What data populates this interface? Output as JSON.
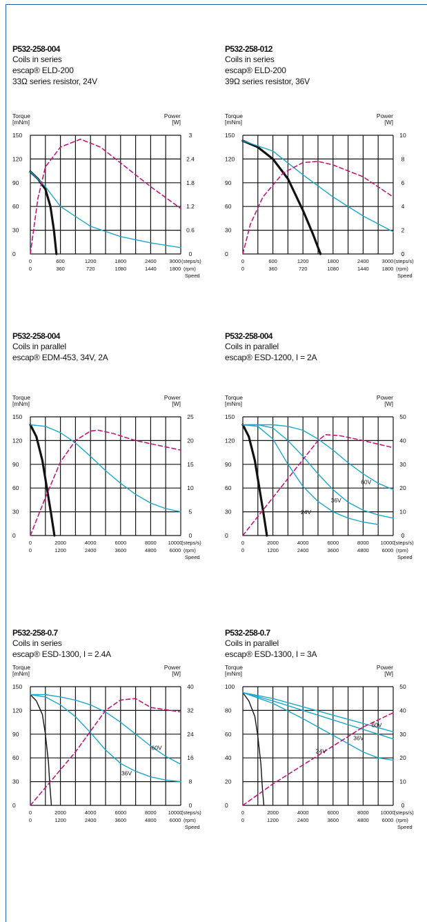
{
  "chart_data": [
    {
      "type": "line",
      "title": "P532-258-004",
      "subtitle_lines": [
        "Coils in series",
        "escap® ELD-200",
        "33Ω series resistor, 24V"
      ],
      "ylabel_left": [
        "Torque",
        "[mNm]"
      ],
      "ylabel_right": [
        "Power",
        "[W]"
      ],
      "xlabel": "Speed",
      "x_unit_top": "(steps/s)",
      "x_unit_bottom": "(rpm)",
      "xlim": [
        0,
        3000
      ],
      "ylim": [
        0,
        150
      ],
      "y2lim": [
        0,
        3
      ],
      "yticks": [
        "0",
        "30",
        "60",
        "90",
        "120",
        "150"
      ],
      "y2ticks": [
        "0",
        "0.6",
        "1.2",
        "1.8",
        "2.4",
        "3"
      ],
      "xticks_top": [
        "0",
        "600",
        "1200",
        "1800",
        "2400",
        "3000"
      ],
      "xticks_bottom": [
        "0",
        "360",
        "720",
        "1080",
        "1440",
        "1800"
      ],
      "grid": true,
      "series": [
        {
          "style": "black",
          "x": [
            0,
            150,
            300,
            400,
            470,
            520
          ],
          "y": [
            104,
            95,
            82,
            60,
            30,
            0
          ]
        },
        {
          "style": "cyan",
          "x": [
            0,
            300,
            600,
            1200,
            1800,
            2400,
            3000
          ],
          "y": [
            104,
            85,
            60,
            35,
            22,
            14,
            8
          ]
        },
        {
          "style": "magenta-dashed",
          "axis": "right",
          "x": [
            0,
            150,
            300,
            600,
            1000,
            1400,
            1800,
            2400,
            3000
          ],
          "y": [
            0,
            1.4,
            2.2,
            2.7,
            2.9,
            2.7,
            2.3,
            1.7,
            1.15
          ]
        }
      ],
      "labels": []
    },
    {
      "type": "line",
      "title": "P532-258-012",
      "subtitle_lines": [
        "Coils in series",
        "escap® ELD-200",
        "39Ω series resistor, 36V"
      ],
      "ylabel_left": [
        "Torque",
        "[mNm]"
      ],
      "ylabel_right": [
        "Power",
        "[W]"
      ],
      "xlabel": "Speed",
      "x_unit_top": "(steps/s)",
      "x_unit_bottom": "(rpm)",
      "xlim": [
        0,
        3000
      ],
      "ylim": [
        0,
        150
      ],
      "y2lim": [
        0,
        10
      ],
      "yticks": [
        "0",
        "30",
        "60",
        "90",
        "120",
        "150"
      ],
      "y2ticks": [
        "0",
        "2",
        "4",
        "6",
        "8",
        "10"
      ],
      "xticks_top": [
        "0",
        "600",
        "1200",
        "1800",
        "2400",
        "3000"
      ],
      "xticks_bottom": [
        "0",
        "360",
        "720",
        "1080",
        "1440",
        "1800"
      ],
      "grid": true,
      "series": [
        {
          "style": "black",
          "x": [
            0,
            300,
            600,
            900,
            1200,
            1400,
            1550
          ],
          "y": [
            143,
            135,
            120,
            95,
            55,
            25,
            0
          ]
        },
        {
          "style": "cyan",
          "x": [
            0,
            600,
            1200,
            1800,
            2400,
            3000
          ],
          "y": [
            143,
            130,
            100,
            72,
            48,
            28
          ]
        },
        {
          "style": "magenta-dashed",
          "axis": "right",
          "x": [
            0,
            150,
            400,
            800,
            1200,
            1500,
            1800,
            2400,
            3000
          ],
          "y": [
            0,
            2.5,
            4.8,
            6.8,
            7.7,
            7.8,
            7.5,
            6.5,
            4.8
          ]
        }
      ],
      "labels": []
    },
    {
      "type": "line",
      "title": "P532-258-004",
      "subtitle_lines": [
        "Coils in parallel",
        "escap® EDM-453, 34V, 2A"
      ],
      "ylabel_left": [
        "Torque",
        "[mNm]"
      ],
      "ylabel_right": [
        "Power",
        "[W]"
      ],
      "xlabel": "Speed",
      "x_unit_top": "(steps/s)",
      "x_unit_bottom": "(rpm)",
      "xlim": [
        0,
        10000
      ],
      "ylim": [
        0,
        150
      ],
      "y2lim": [
        0,
        25
      ],
      "yticks": [
        "0",
        "30",
        "60",
        "90",
        "120",
        "150"
      ],
      "y2ticks": [
        "0",
        "5",
        "10",
        "15",
        "20",
        "25"
      ],
      "xticks_top": [
        "0",
        "2000",
        "4000",
        "6000",
        "8000",
        "10000"
      ],
      "xticks_bottom": [
        "0",
        "1200",
        "2400",
        "3600",
        "4800",
        "6000"
      ],
      "grid": true,
      "series": [
        {
          "style": "black",
          "x": [
            0,
            400,
            800,
            1100,
            1400,
            1600
          ],
          "y": [
            140,
            125,
            95,
            60,
            25,
            0
          ]
        },
        {
          "style": "cyan",
          "x": [
            0,
            1000,
            2000,
            3000,
            4000,
            5000,
            6000,
            7000,
            8000,
            9000,
            10000
          ],
          "y": [
            140,
            138,
            130,
            117,
            100,
            82,
            66,
            52,
            41,
            34,
            30
          ]
        },
        {
          "style": "magenta-dashed",
          "axis": "right",
          "x": [
            0,
            500,
            1000,
            2000,
            3000,
            4000,
            4500,
            5500,
            7000,
            8500,
            10000
          ],
          "y": [
            0,
            4,
            8,
            15.5,
            20,
            22,
            22.2,
            21.5,
            20,
            19,
            18
          ]
        }
      ],
      "labels": []
    },
    {
      "type": "line",
      "title": "P532-258-004",
      "subtitle_lines": [
        "Coils in parallel",
        "escap® ESD-1200, I = 2A"
      ],
      "ylabel_left": [
        "Torque",
        "[mNm]"
      ],
      "ylabel_right": [
        "Power",
        "[W]"
      ],
      "xlabel": "Speed",
      "x_unit_top": "(steps/s)",
      "x_unit_bottom": "(rpm)",
      "xlim": [
        0,
        10000
      ],
      "ylim": [
        0,
        150
      ],
      "y2lim": [
        0,
        50
      ],
      "yticks": [
        "0",
        "30",
        "60",
        "90",
        "120",
        "150"
      ],
      "y2ticks": [
        "0",
        "10",
        "20",
        "30",
        "40",
        "50"
      ],
      "xticks_top": [
        "0",
        "2000",
        "4000",
        "6000",
        "8000",
        "10000"
      ],
      "xticks_bottom": [
        "0",
        "1200",
        "2400",
        "3600",
        "4800",
        "6000"
      ],
      "grid": true,
      "series": [
        {
          "style": "black",
          "x": [
            0,
            400,
            800,
            1100,
            1400,
            1600
          ],
          "y": [
            140,
            125,
            95,
            60,
            25,
            0
          ]
        },
        {
          "style": "cyan",
          "x": [
            0,
            1000,
            2000,
            3000,
            4000,
            5000,
            6000,
            7000,
            8000,
            9000
          ],
          "y": [
            140,
            138,
            122,
            90,
            62,
            43,
            30,
            22,
            17,
            14
          ]
        },
        {
          "style": "cyan",
          "x": [
            0,
            1000,
            2000,
            3000,
            4000,
            5000,
            6000,
            7000,
            8000,
            9000,
            10000
          ],
          "y": [
            140,
            140,
            136,
            120,
            100,
            78,
            58,
            42,
            32,
            26,
            22
          ]
        },
        {
          "style": "cyan",
          "x": [
            0,
            1000,
            2000,
            3000,
            4000,
            5000,
            6000,
            7000,
            8000,
            9000,
            10000
          ],
          "y": [
            140,
            140,
            140,
            138,
            133,
            122,
            108,
            92,
            78,
            66,
            58
          ]
        },
        {
          "style": "magenta-dashed",
          "axis": "right",
          "x": [
            0,
            500,
            1000,
            2000,
            3000,
            4000,
            5000,
            5500,
            6500,
            8000,
            10000
          ],
          "y": [
            0,
            4,
            8,
            16,
            24,
            32,
            40,
            42.5,
            42,
            40,
            37
          ]
        }
      ],
      "labels": [
        {
          "text": "60V",
          "x": 8200,
          "y": 65
        },
        {
          "text": "36V",
          "x": 6200,
          "y": 42
        },
        {
          "text": "24V",
          "x": 4200,
          "y": 27
        }
      ]
    },
    {
      "type": "line",
      "title": "P532-258-0.7",
      "subtitle_lines": [
        "Coils in series",
        "escap® ESD-1300, I = 2.4A"
      ],
      "ylabel_left": [
        "Torque",
        "[mNm]"
      ],
      "ylabel_right": [
        "Power",
        "[W]"
      ],
      "xlabel": "Speed",
      "x_unit_top": "(steps/s)",
      "x_unit_bottom": "(rpm)",
      "xlim": [
        0,
        10000
      ],
      "ylim": [
        0,
        150
      ],
      "y2lim": [
        0,
        40
      ],
      "yticks": [
        "0",
        "30",
        "60",
        "90",
        "120",
        "150"
      ],
      "y2ticks": [
        "0",
        "8",
        "16",
        "24",
        "32",
        "40"
      ],
      "xticks_top": [
        "0",
        "2000",
        "4000",
        "6000",
        "8000",
        "10000"
      ],
      "xticks_bottom": [
        "0",
        "1200",
        "2400",
        "3600",
        "4800",
        "6000"
      ],
      "grid": true,
      "series": [
        {
          "style": "black-thin",
          "x": [
            0,
            400,
            800,
            1000,
            1200,
            1300,
            1400
          ],
          "y": [
            140,
            132,
            115,
            90,
            55,
            25,
            0
          ]
        },
        {
          "style": "cyan",
          "x": [
            0,
            1000,
            2000,
            3000,
            4000,
            5000,
            6000,
            7000,
            8000,
            9000,
            10000
          ],
          "y": [
            140,
            137,
            127,
            112,
            92,
            70,
            53,
            43,
            36,
            32,
            30
          ]
        },
        {
          "style": "cyan",
          "x": [
            0,
            1000,
            2000,
            3000,
            4000,
            5000,
            6000,
            7000,
            8000,
            9000,
            10000
          ],
          "y": [
            140,
            140,
            137,
            133,
            127,
            118,
            105,
            90,
            75,
            62,
            52
          ]
        },
        {
          "style": "magenta-dashed",
          "axis": "right",
          "x": [
            0,
            1000,
            2000,
            3000,
            4000,
            5000,
            6000,
            7000,
            8000,
            10000
          ],
          "y": [
            0,
            6,
            12,
            18,
            25,
            32,
            35.5,
            36,
            33,
            31.5
          ]
        }
      ],
      "labels": [
        {
          "text": "60V",
          "x": 8400,
          "y": 70
        },
        {
          "text": "36V",
          "x": 6400,
          "y": 38
        }
      ]
    },
    {
      "type": "line",
      "title": "P532-258-0.7",
      "subtitle_lines": [
        "Coils in parallel",
        "escap® ESD-1300, I = 3A"
      ],
      "ylabel_left": [
        "Torque",
        "[mNm]"
      ],
      "ylabel_right": [
        "Power",
        "[W]"
      ],
      "xlabel": "Speed",
      "x_unit_top": "(steps/s)",
      "x_unit_bottom": "(rpm)",
      "xlim": [
        0,
        10000
      ],
      "ylim": [
        0,
        100
      ],
      "y2lim": [
        0,
        50
      ],
      "yticks": [
        "0",
        "20",
        "40",
        "60",
        "80",
        "100"
      ],
      "y2ticks": [
        "0",
        "10",
        "20",
        "30",
        "40",
        "50"
      ],
      "xticks_top": [
        "0",
        "2000",
        "4000",
        "6000",
        "8000",
        "10000"
      ],
      "xticks_bottom": [
        "0",
        "1200",
        "2400",
        "3600",
        "4800",
        "6000"
      ],
      "grid": true,
      "series": [
        {
          "style": "black-thin",
          "x": [
            0,
            400,
            800,
            1000,
            1200,
            1300,
            1400
          ],
          "y": [
            95,
            88,
            75,
            58,
            35,
            15,
            0
          ]
        },
        {
          "style": "cyan",
          "x": [
            0,
            2000,
            4000,
            6000,
            8000,
            9000,
            10000
          ],
          "y": [
            95,
            86,
            73,
            59,
            45,
            40,
            38
          ]
        },
        {
          "style": "cyan",
          "x": [
            0,
            2000,
            4000,
            6000,
            8000,
            10000
          ],
          "y": [
            95,
            88,
            80,
            72,
            64,
            56
          ]
        },
        {
          "style": "cyan",
          "x": [
            0,
            2000,
            4000,
            6000,
            8000,
            10000
          ],
          "y": [
            95,
            90,
            83,
            76,
            69,
            62
          ]
        },
        {
          "style": "magenta-dashed",
          "axis": "right",
          "x": [
            0,
            2000,
            4000,
            6000,
            8000,
            10000
          ],
          "y": [
            0,
            9,
            17,
            25,
            33,
            39
          ]
        }
      ],
      "labels": [
        {
          "text": "60V",
          "x": 8900,
          "y": 66
        },
        {
          "text": "36V",
          "x": 7700,
          "y": 55
        },
        {
          "text": "24V",
          "x": 5200,
          "y": 44
        }
      ]
    }
  ]
}
